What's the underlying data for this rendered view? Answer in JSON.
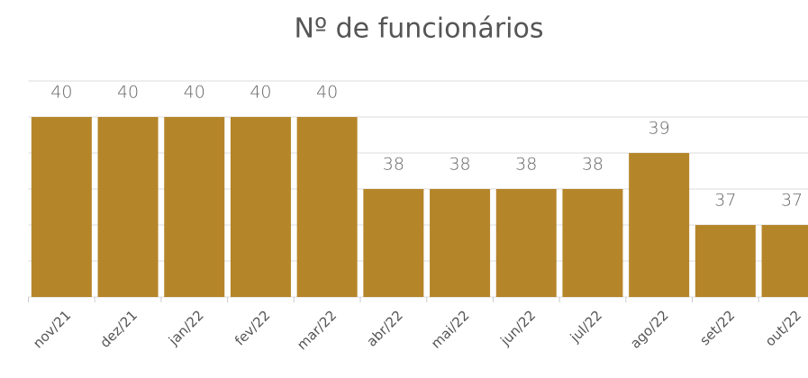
{
  "chart_data": {
    "type": "bar",
    "title": "Nº de funcionários",
    "categories": [
      "nov/21",
      "dez/21",
      "jan/22",
      "fev/22",
      "mar/22",
      "abr/22",
      "mai/22",
      "jun/22",
      "jul/22",
      "ago/22",
      "set/22",
      "out/22"
    ],
    "values": [
      40,
      40,
      40,
      40,
      40,
      38,
      38,
      38,
      38,
      39,
      37,
      37
    ],
    "color": "#b5852a",
    "ylim": [
      35,
      41
    ],
    "yticks": [
      35,
      36,
      37,
      38,
      39,
      40,
      41
    ],
    "grid": true
  }
}
